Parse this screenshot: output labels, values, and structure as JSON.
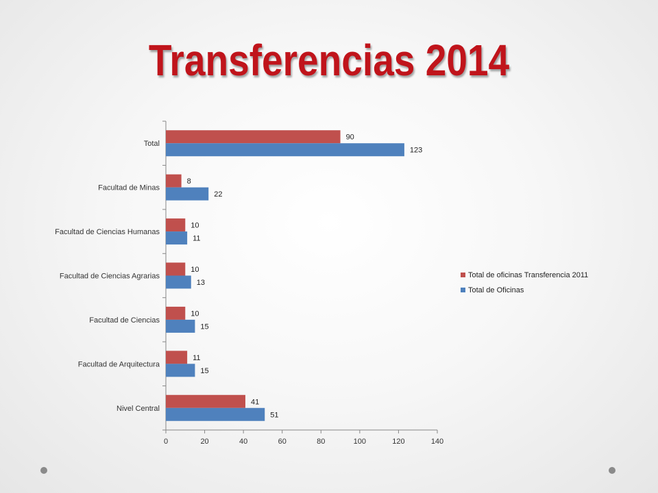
{
  "slide": {
    "title": "Transferencias 2014"
  },
  "colors": {
    "title": "#c0141b",
    "series_2011": "#c0504d",
    "series_total": "#4f81bd",
    "corner_dots": "#8a8a8a"
  },
  "chart_data": {
    "type": "bar",
    "orientation": "horizontal",
    "categories": [
      "Total",
      "Facultad de Minas",
      "Facultad de Ciencias Humanas",
      "Facultad de  Ciencias Agrarias",
      "Facultad de Ciencias",
      "Facultad de Arquitectura",
      "Nivel Central"
    ],
    "series": [
      {
        "name": "Total de oficinas Transferencia 2011",
        "color": "#c0504d",
        "values": [
          90,
          8,
          10,
          10,
          10,
          11,
          41
        ]
      },
      {
        "name": "Total de  Oficinas",
        "color": "#4f81bd",
        "values": [
          123,
          22,
          11,
          13,
          15,
          15,
          51
        ]
      }
    ],
    "xlim": [
      0,
      140
    ],
    "xticks": [
      0,
      20,
      40,
      60,
      80,
      100,
      120,
      140
    ],
    "grid": false,
    "legend_position": "right",
    "data_labels": true
  }
}
